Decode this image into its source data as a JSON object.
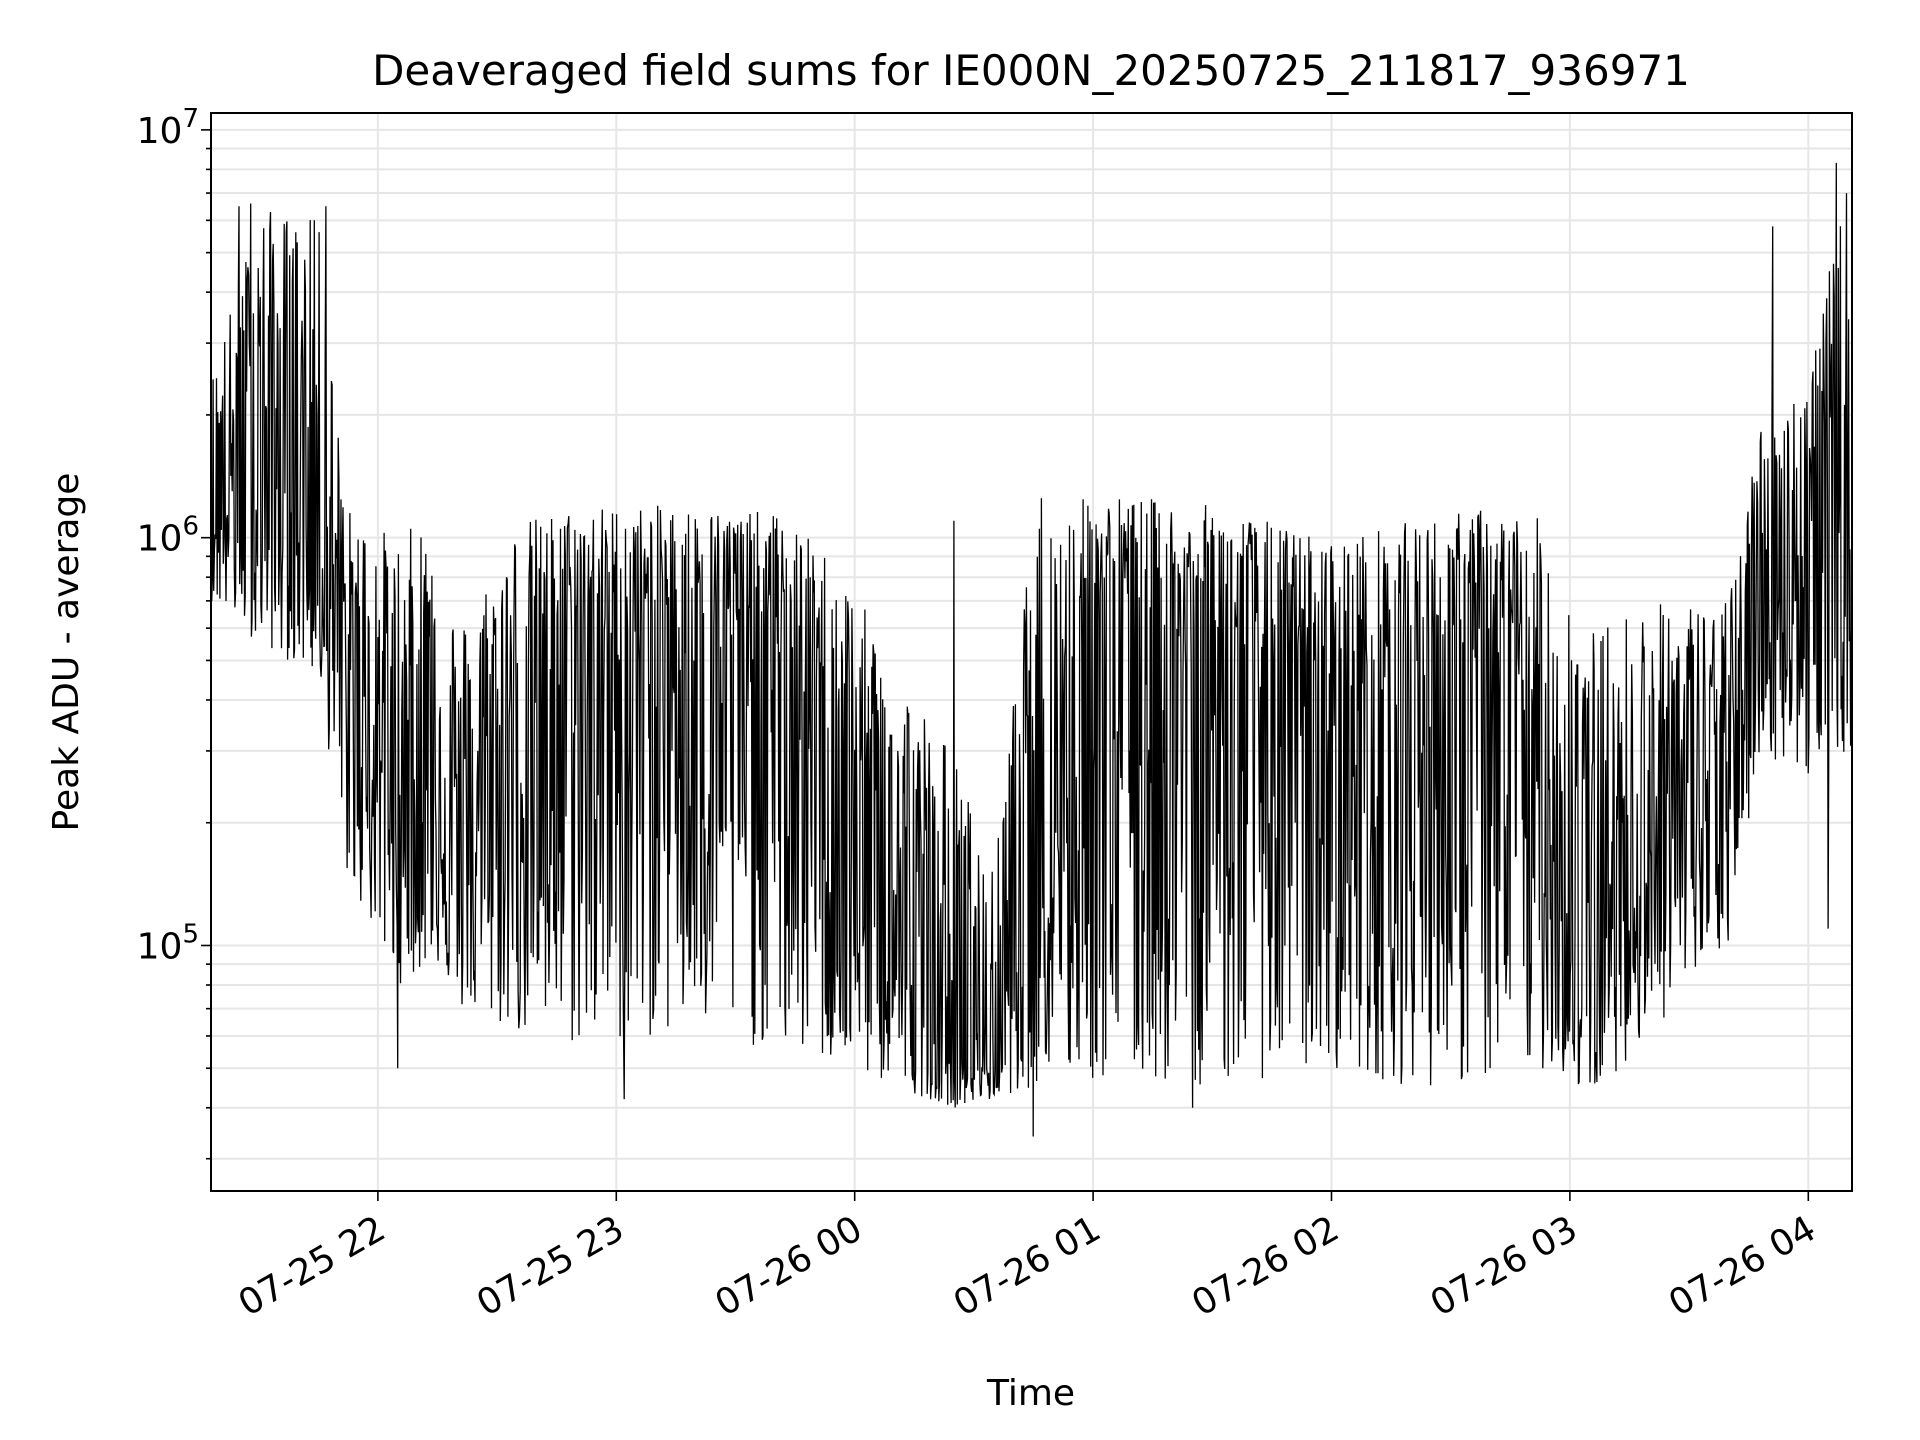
{
  "chart_data": {
    "type": "line",
    "title": "Deaveraged field sums for IE000N_20250725_211817_936971",
    "xlabel": "Time",
    "ylabel": "Peak ADU - average",
    "yscale": "log",
    "ylim": [
      25000,
      11000000
    ],
    "xlim": [
      "2025-07-25 21:18",
      "2025-07-26 04:11"
    ],
    "grid": true,
    "x_ticks": [
      {
        "t": "2025-07-25 22:00",
        "label": "07-25 22"
      },
      {
        "t": "2025-07-25 23:00",
        "label": "07-25 23"
      },
      {
        "t": "2025-07-26 00:00",
        "label": "07-26 00"
      },
      {
        "t": "2025-07-26 01:00",
        "label": "07-26 01"
      },
      {
        "t": "2025-07-26 02:00",
        "label": "07-26 02"
      },
      {
        "t": "2025-07-26 03:00",
        "label": "07-26 03"
      },
      {
        "t": "2025-07-26 04:00",
        "label": "07-26 04"
      }
    ],
    "y_ticks": [
      {
        "value": 100000,
        "base": "10",
        "exp": "5"
      },
      {
        "value": 1000000,
        "base": "10",
        "exp": "6"
      },
      {
        "value": 10000000,
        "base": "10",
        "exp": "7"
      }
    ],
    "line_color": "#000000",
    "envelope": {
      "note_points": "time, lower bound, upper bound, typical level",
      "points": [
        [
          "2025-07-25 21:18",
          700000,
          2500000,
          1200000
        ],
        [
          "2025-07-25 21:30",
          550000,
          6500000,
          1500000
        ],
        [
          "2025-07-25 21:45",
          450000,
          6000000,
          1300000
        ],
        [
          "2025-07-25 21:52",
          150000,
          1200000,
          400000
        ],
        [
          "2025-07-25 22:05",
          80000,
          1000000,
          250000
        ],
        [
          "2025-07-25 22:15",
          90000,
          1200000,
          300000
        ],
        [
          "2025-07-25 22:20",
          70000,
          600000,
          150000
        ],
        [
          "2025-07-25 22:35",
          60000,
          1100000,
          300000
        ],
        [
          "2025-07-25 22:50",
          55000,
          1200000,
          500000
        ],
        [
          "2025-07-25 23:15",
          60000,
          1200000,
          600000
        ],
        [
          "2025-07-25 23:40",
          55000,
          1150000,
          550000
        ],
        [
          "2025-07-25 23:55",
          50000,
          900000,
          250000
        ],
        [
          "2025-07-26 00:10",
          45000,
          500000,
          100000
        ],
        [
          "2025-07-26 00:25",
          40000,
          300000,
          55000
        ],
        [
          "2025-07-26 00:35",
          42000,
          150000,
          50000
        ],
        [
          "2025-07-26 00:45",
          45000,
          1100000,
          200000
        ],
        [
          "2025-07-26 01:00",
          45000,
          1300000,
          500000
        ],
        [
          "2025-07-26 01:30",
          45000,
          1200000,
          500000
        ],
        [
          "2025-07-26 02:00",
          50000,
          1000000,
          300000
        ],
        [
          "2025-07-26 02:20",
          45000,
          1100000,
          400000
        ],
        [
          "2025-07-26 02:40",
          45000,
          1200000,
          450000
        ],
        [
          "2025-07-26 02:55",
          50000,
          1100000,
          200000
        ],
        [
          "2025-07-26 03:05",
          42000,
          600000,
          90000
        ],
        [
          "2025-07-26 03:20",
          60000,
          700000,
          200000
        ],
        [
          "2025-07-26 03:40",
          100000,
          700000,
          220000
        ],
        [
          "2025-07-26 03:48",
          300000,
          2000000,
          800000
        ],
        [
          "2025-07-26 04:00",
          250000,
          2500000,
          900000
        ],
        [
          "2025-07-26 04:11",
          300000,
          8500000,
          900000
        ]
      ],
      "spikes": [
        [
          "2025-07-25 21:25",
          6500000
        ],
        [
          "2025-07-25 21:28",
          6600000
        ],
        [
          "2025-07-25 21:44",
          6000000
        ],
        [
          "2025-07-25 21:47",
          6500000
        ],
        [
          "2025-07-25 22:05",
          50000
        ],
        [
          "2025-07-25 23:02",
          42000
        ],
        [
          "2025-07-26 00:25",
          1100000
        ],
        [
          "2025-07-26 00:45",
          34000
        ],
        [
          "2025-07-26 00:47",
          1250000
        ],
        [
          "2025-07-26 01:25",
          40000
        ],
        [
          "2025-07-26 03:51",
          5800000
        ],
        [
          "2025-07-26 04:07",
          8300000
        ],
        [
          "2025-07-26 04:05",
          110000
        ]
      ]
    }
  }
}
